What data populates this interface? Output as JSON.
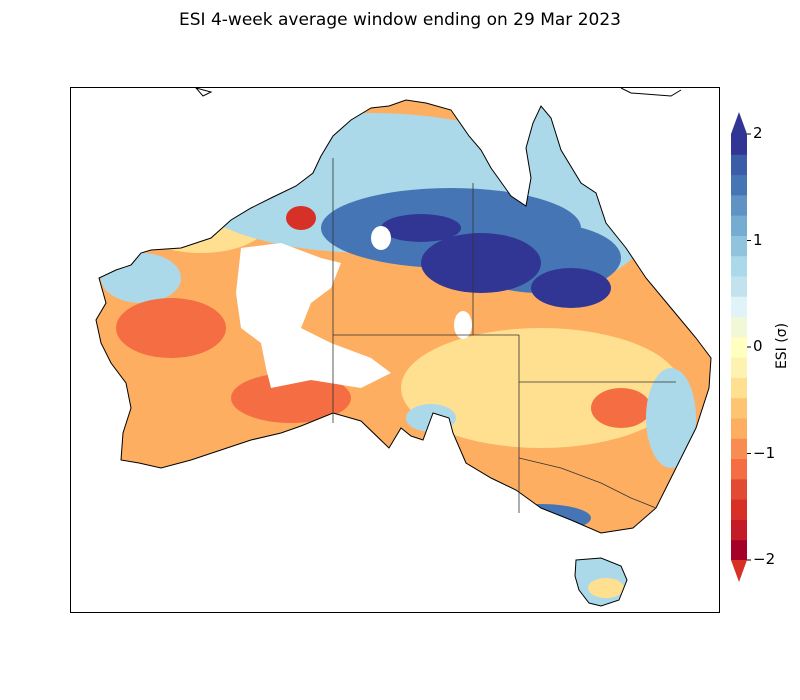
{
  "title": "ESI 4-week average window ending on 29 Mar 2023",
  "colorbar": {
    "label": "ESI (σ)",
    "min": -2,
    "max": 2,
    "ticks": [
      {
        "value": 2,
        "label": "2"
      },
      {
        "value": 1,
        "label": "1"
      },
      {
        "value": 0,
        "label": "0"
      },
      {
        "value": -1,
        "label": "−1"
      },
      {
        "value": -2,
        "label": "−2"
      }
    ],
    "colors": [
      "#a50026",
      "#c41c27",
      "#d73027",
      "#e34a33",
      "#f46d43",
      "#f88d52",
      "#fdae61",
      "#fdc472",
      "#fee090",
      "#fef2b0",
      "#ffffbf",
      "#f0f8d8",
      "#e0f3f8",
      "#c2e2ee",
      "#abd9e9",
      "#90c3de",
      "#74add1",
      "#5e93c4",
      "#4575b4",
      "#3b5ca6",
      "#313695"
    ],
    "extend": "both"
  },
  "map": {
    "region": "Australia",
    "colors": {
      "strong_wet": "#313695",
      "wet": "#4575b4",
      "moist": "#abd9e9",
      "near_normal": "#fee090",
      "dry": "#fdae61",
      "very_dry": "#f46d43",
      "extreme_dry": "#d73027",
      "no_data": "#ffffff"
    }
  }
}
